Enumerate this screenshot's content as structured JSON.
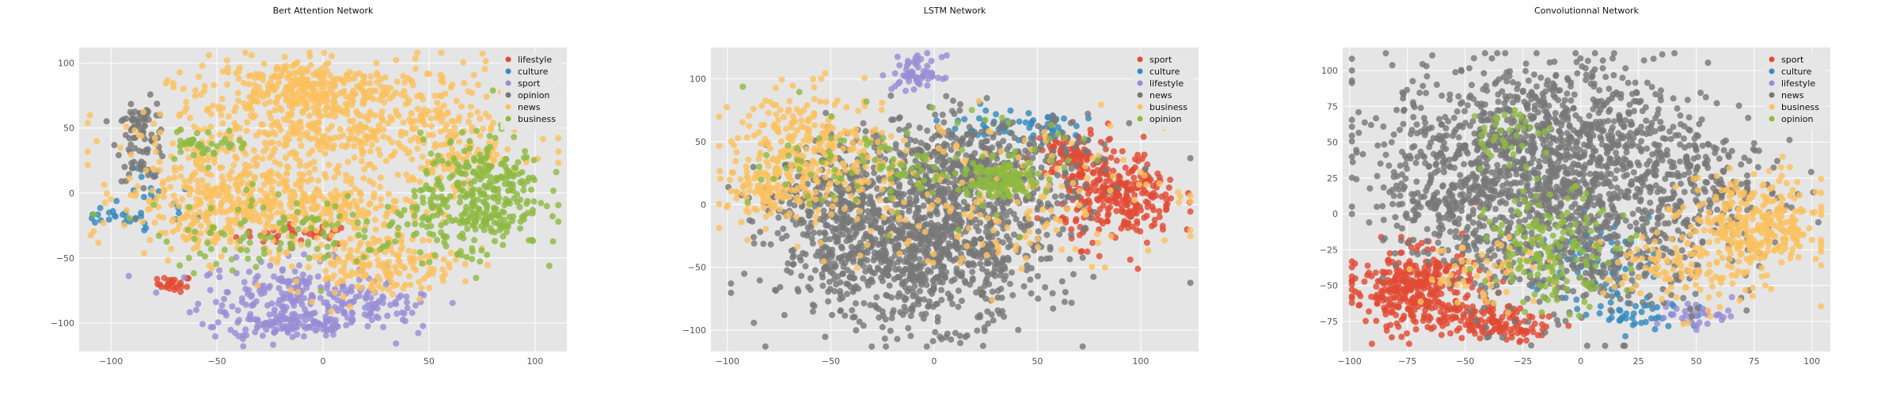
{
  "figure": {
    "background": "#ffffff",
    "plot_bg": "#e5e5e5",
    "grid_color": "#ffffff"
  },
  "palette": {
    "red": "#e24a33",
    "blue": "#348abd",
    "purple": "#988ed5",
    "gray": "#777777",
    "yellow": "#fbc15e",
    "green": "#8eba42"
  },
  "chart_data": [
    {
      "type": "scatter",
      "title": "Bert Attention Network",
      "xlabel": "",
      "ylabel": "",
      "xlim": [
        -115,
        115
      ],
      "ylim": [
        -122,
        112
      ],
      "xticks": [
        -100,
        -50,
        0,
        50,
        100
      ],
      "yticks": [
        -100,
        -50,
        0,
        50,
        100
      ],
      "grid": true,
      "legend_position": "top-right",
      "series": [
        {
          "name": "lifestyle",
          "color": "#e24a33",
          "clusters": [
            [
              -10,
              -32,
              15,
              4,
              35
            ],
            [
              -70,
              -70,
              4,
              3,
              25
            ]
          ]
        },
        {
          "name": "culture",
          "color": "#348abd",
          "clusters": [
            [
              -100,
              -19,
              8,
              3,
              18
            ],
            [
              -80,
              -10,
              10,
              15,
              20
            ]
          ]
        },
        {
          "name": "sport",
          "color": "#988ed5",
          "clusters": [
            [
              -15,
              -80,
              22,
              14,
              220
            ],
            [
              -15,
              -103,
              18,
              4,
              80
            ],
            [
              25,
              -90,
              15,
              8,
              60
            ]
          ]
        },
        {
          "name": "opinion",
          "color": "#777777",
          "clusters": [
            [
              -85,
              40,
              6,
              15,
              70
            ],
            [
              -88,
              55,
              3,
              6,
              20
            ]
          ]
        },
        {
          "name": "news",
          "color": "#fbc15e",
          "clusters": [
            [
              -10,
              82,
              22,
              10,
              220
            ],
            [
              10,
              50,
              40,
              25,
              550
            ],
            [
              -55,
              0,
              20,
              25,
              260
            ],
            [
              -10,
              -10,
              30,
              15,
              300
            ],
            [
              25,
              -55,
              20,
              12,
              180
            ],
            [
              60,
              35,
              10,
              15,
              70
            ]
          ]
        },
        {
          "name": "business",
          "color": "#8eba42",
          "clusters": [
            [
              75,
              0,
              14,
              22,
              300
            ],
            [
              -55,
              38,
              10,
              6,
              40
            ],
            [
              -20,
              -30,
              30,
              15,
              110
            ],
            [
              50,
              -25,
              15,
              15,
              60
            ]
          ]
        }
      ]
    },
    {
      "type": "scatter",
      "title": "LSTM Network",
      "xlabel": "",
      "ylabel": "",
      "xlim": [
        -108,
        128
      ],
      "ylim": [
        -117,
        125
      ],
      "xticks": [
        -100,
        -50,
        0,
        50,
        100
      ],
      "yticks": [
        -100,
        -50,
        0,
        50,
        100
      ],
      "grid": true,
      "legend_position": "top-right",
      "series": [
        {
          "name": "sport",
          "color": "#e24a33",
          "clusters": [
            [
              90,
              5,
              14,
              18,
              280
            ],
            [
              65,
              40,
              8,
              10,
              80
            ]
          ]
        },
        {
          "name": "culture",
          "color": "#348abd",
          "clusters": [
            [
              30,
              65,
              15,
              6,
              40
            ],
            [
              55,
              60,
              6,
              5,
              20
            ]
          ]
        },
        {
          "name": "lifestyle",
          "color": "#988ed5",
          "clusters": [
            [
              -8,
              104,
              6,
              7,
              60
            ]
          ]
        },
        {
          "name": "news",
          "color": "#777777",
          "clusters": [
            [
              -10,
              -35,
              32,
              30,
              1100
            ],
            [
              15,
              30,
              32,
              20,
              550
            ],
            [
              -55,
              0,
              15,
              18,
              120
            ]
          ]
        },
        {
          "name": "business",
          "color": "#fbc15e",
          "clusters": [
            [
              -60,
              40,
              18,
              25,
              300
            ],
            [
              -85,
              10,
              10,
              10,
              70
            ],
            [
              25,
              10,
              45,
              30,
              200
            ]
          ]
        },
        {
          "name": "opinion",
          "color": "#8eba42",
          "clusters": [
            [
              30,
              20,
              10,
              8,
              120
            ],
            [
              -10,
              30,
              35,
              20,
              120
            ]
          ]
        }
      ]
    },
    {
      "type": "scatter",
      "title": "Convolutionnal Network",
      "xlabel": "",
      "ylabel": "",
      "xlim": [
        -103,
        108
      ],
      "ylim": [
        -96,
        116
      ],
      "xticks": [
        -100,
        -75,
        -50,
        -25,
        0,
        25,
        50,
        75,
        100
      ],
      "yticks": [
        -75,
        -50,
        -25,
        0,
        25,
        50,
        75,
        100
      ],
      "grid": true,
      "legend_position": "top-right",
      "series": [
        {
          "name": "sport",
          "color": "#e24a33",
          "clusters": [
            [
              -72,
              -52,
              14,
              14,
              350
            ],
            [
              -45,
              -75,
              12,
              6,
              80
            ],
            [
              -30,
              -78,
              10,
              5,
              50
            ]
          ]
        },
        {
          "name": "culture",
          "color": "#348abd",
          "clusters": [
            [
              5,
              -35,
              12,
              15,
              70
            ],
            [
              30,
              -70,
              12,
              6,
              40
            ]
          ]
        },
        {
          "name": "lifestyle",
          "color": "#988ed5",
          "clusters": [
            [
              50,
              -70,
              8,
              5,
              40
            ]
          ]
        },
        {
          "name": "news",
          "color": "#777777",
          "clusters": [
            [
              -15,
              45,
              35,
              30,
              1200
            ],
            [
              0,
              -20,
              30,
              28,
              500
            ],
            [
              -55,
              0,
              15,
              20,
              150
            ],
            [
              55,
              20,
              15,
              15,
              120
            ]
          ]
        },
        {
          "name": "business",
          "color": "#fbc15e",
          "clusters": [
            [
              75,
              -10,
              15,
              18,
              320
            ],
            [
              40,
              -40,
              15,
              15,
              100
            ],
            [
              -40,
              -40,
              15,
              12,
              60
            ]
          ]
        },
        {
          "name": "opinion",
          "color": "#8eba42",
          "clusters": [
            [
              -12,
              -25,
              14,
              20,
              160
            ],
            [
              -30,
              55,
              10,
              10,
              40
            ]
          ]
        }
      ]
    }
  ]
}
